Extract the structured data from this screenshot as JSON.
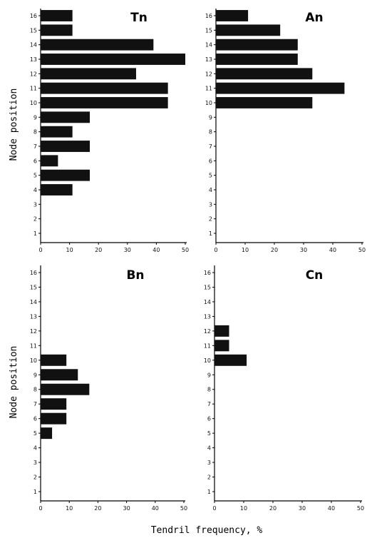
{
  "chart_data": [
    {
      "type": "bar",
      "orientation": "horizontal",
      "title": "Tn",
      "ylabel": "Node position",
      "xlabel": "",
      "categories": [
        "1",
        "2",
        "3",
        "4",
        "5",
        "6",
        "7",
        "8",
        "9",
        "10",
        "11",
        "12",
        "13",
        "14",
        "15",
        "16"
      ],
      "values": [
        0,
        0,
        0,
        11,
        17,
        6,
        17,
        11,
        17,
        44,
        44,
        33,
        50,
        39,
        11,
        11
      ],
      "xlim": [
        0,
        50
      ],
      "xticks": [
        "0",
        "10",
        "20",
        "30",
        "40",
        "50"
      ]
    },
    {
      "type": "bar",
      "orientation": "horizontal",
      "title": "An",
      "ylabel": "",
      "xlabel": "",
      "categories": [
        "1",
        "2",
        "3",
        "4",
        "5",
        "6",
        "7",
        "8",
        "9",
        "10",
        "11",
        "12",
        "13",
        "14",
        "15",
        "16"
      ],
      "values": [
        0,
        0,
        0,
        0,
        0,
        0,
        0,
        0,
        0,
        33,
        44,
        33,
        28,
        28,
        22,
        11
      ],
      "xlim": [
        0,
        50
      ],
      "xticks": [
        "0",
        "10",
        "20",
        "30",
        "40",
        "50"
      ]
    },
    {
      "type": "bar",
      "orientation": "horizontal",
      "title": "Bn",
      "ylabel": "Node position",
      "xlabel": "",
      "categories": [
        "1",
        "2",
        "3",
        "4",
        "5",
        "6",
        "7",
        "8",
        "9",
        "10",
        "11",
        "12",
        "13",
        "14",
        "15",
        "16"
      ],
      "values": [
        0,
        0,
        0,
        0,
        4,
        9,
        9,
        17,
        13,
        9,
        0,
        0,
        0,
        0,
        0,
        0
      ],
      "xlim": [
        0,
        50
      ],
      "xticks": [
        "0",
        "10",
        "20",
        "30",
        "40",
        "50"
      ]
    },
    {
      "type": "bar",
      "orientation": "horizontal",
      "title": "Cn",
      "ylabel": "",
      "xlabel": "",
      "categories": [
        "1",
        "2",
        "3",
        "4",
        "5",
        "6",
        "7",
        "8",
        "9",
        "10",
        "11",
        "12",
        "13",
        "14",
        "15",
        "16"
      ],
      "values": [
        0,
        0,
        0,
        0,
        0,
        0,
        0,
        0,
        0,
        11,
        5,
        5,
        0,
        0,
        0,
        0
      ],
      "xlim": [
        0,
        50
      ],
      "xticks": [
        "0",
        "10",
        "20",
        "30",
        "40",
        "50"
      ]
    }
  ],
  "shared_xlabel": "Tendril frequency, %",
  "colors": {
    "bar": "#111111",
    "axis": "#000000"
  }
}
